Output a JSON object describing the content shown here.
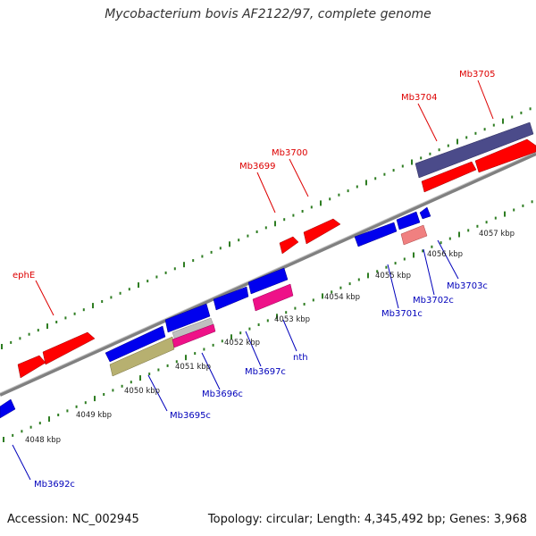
{
  "title": "Mycobacterium bovis AF2122/97, complete genome",
  "footer": {
    "accession": "Accession: NC_002945",
    "meta": "Topology: circular; Length: 4,345,492 bp; Genes: 3,968"
  },
  "colors": {
    "backbone": "#8a8a8a",
    "tick": "#2e7d22",
    "forward_label": "#dd0000",
    "reverse_label": "#0000bb",
    "red": "#ff0000",
    "blue": "#0000ee",
    "navy": "#4b4b8a",
    "magenta": "#ee1188",
    "olive": "#b7b070",
    "pink": "#f08080",
    "grey": "#bfbfbf"
  },
  "kbp_labels": [
    "4048 kbp",
    "4049 kbp",
    "4050 kbp",
    "4051 kbp",
    "4052 kbp",
    "4053 kbp",
    "4054 kbp",
    "4055 kbp",
    "4056 kbp",
    "4057 kbp"
  ],
  "gene_labels": {
    "ephE": "ephE",
    "mb3699": "Mb3699",
    "mb3700": "Mb3700",
    "mb3704": "Mb3704",
    "mb3705": "Mb3705",
    "mb3692c": "Mb3692c",
    "mb3695c": "Mb3695c",
    "mb3696c": "Mb3696c",
    "mb3697c": "Mb3697c",
    "nth": "nth",
    "mb3701c": "Mb3701c",
    "mb3702c": "Mb3702c",
    "mb3703c": "Mb3703c"
  }
}
